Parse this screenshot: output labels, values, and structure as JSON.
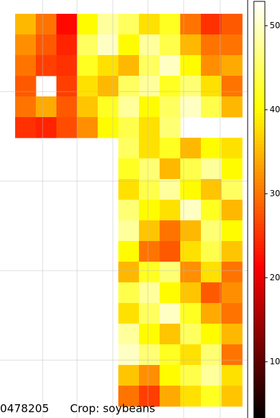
{
  "chart_data": {
    "type": "heatmap",
    "colormap": "hot",
    "z": [
      [
        35,
        30,
        22,
        40,
        48,
        45,
        38,
        42,
        30,
        25,
        28
      ],
      [
        32,
        28,
        24,
        45,
        50,
        40,
        48,
        44,
        35,
        30,
        30
      ],
      [
        30,
        26,
        25,
        42,
        38,
        35,
        45,
        50,
        40,
        32,
        34
      ],
      [
        28,
        null,
        26,
        38,
        35,
        45,
        48,
        42,
        46,
        38,
        30
      ],
      [
        30,
        34,
        28,
        36,
        42,
        48,
        40,
        45,
        50,
        44,
        35
      ],
      [
        25,
        24,
        27,
        32,
        40,
        44,
        38,
        46,
        null,
        null,
        null
      ],
      [
        null,
        null,
        null,
        null,
        null,
        45,
        38,
        42,
        35,
        40,
        38
      ],
      [
        null,
        null,
        null,
        null,
        null,
        42,
        46,
        35,
        44,
        48,
        40
      ],
      [
        null,
        null,
        null,
        null,
        null,
        38,
        44,
        48,
        40,
        36,
        45
      ],
      [
        null,
        null,
        null,
        null,
        null,
        46,
        40,
        38,
        50,
        42,
        35
      ],
      [
        null,
        null,
        null,
        null,
        null,
        48,
        36,
        30,
        35,
        46,
        40
      ],
      [
        null,
        null,
        null,
        null,
        null,
        40,
        30,
        28,
        38,
        44,
        36
      ],
      [
        null,
        null,
        null,
        null,
        null,
        35,
        42,
        46,
        32,
        38,
        30
      ],
      [
        null,
        null,
        null,
        null,
        null,
        44,
        48,
        40,
        36,
        28,
        32
      ],
      [
        null,
        null,
        null,
        null,
        null,
        38,
        45,
        50,
        42,
        34,
        30
      ],
      [
        null,
        null,
        null,
        null,
        null,
        48,
        40,
        36,
        45,
        40,
        35
      ],
      [
        null,
        null,
        null,
        null,
        null,
        50,
        46,
        42,
        38,
        46,
        30
      ],
      [
        null,
        null,
        null,
        null,
        null,
        36,
        32,
        40,
        44,
        48,
        38
      ],
      [
        null,
        null,
        null,
        null,
        null,
        30,
        26,
        34,
        38,
        42,
        36
      ]
    ],
    "colorbar": {
      "lim": [
        3.3,
        52.9
      ],
      "ticks": [
        10,
        20,
        30,
        40,
        50
      ]
    },
    "caption": "0478205      Crop: soybeans"
  }
}
